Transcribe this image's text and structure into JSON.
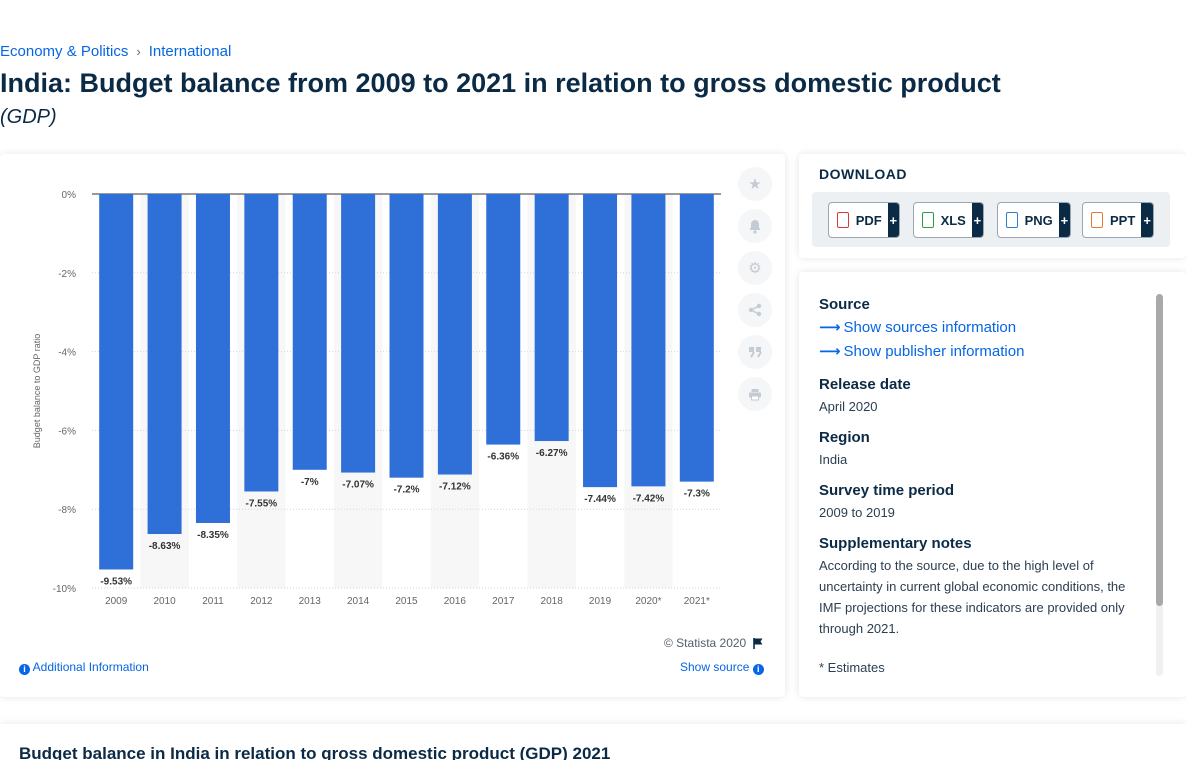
{
  "breadcrumb": {
    "items": [
      "Economy & Politics",
      "International"
    ],
    "separator": "›"
  },
  "title": "India: Budget balance from 2009 to 2021 in relation to gross domestic product",
  "subtitle": "(GDP)",
  "toolbar": {
    "icons": [
      "star-icon",
      "bell-icon",
      "settings-icon",
      "share-icon",
      "quote-icon",
      "print-icon"
    ]
  },
  "chart_footer": {
    "copyright": "© Statista 2020",
    "additional_info": "Additional Information",
    "show_source": "Show source"
  },
  "download": {
    "title": "DOWNLOAD",
    "buttons": [
      {
        "label": "PDF",
        "icon": "pdf-file-icon",
        "color": "#d83a3a"
      },
      {
        "label": "XLS",
        "icon": "xls-file-icon",
        "color": "#2e9e44"
      },
      {
        "label": "PNG",
        "icon": "png-file-icon",
        "color": "#2d7fd3"
      },
      {
        "label": "PPT",
        "icon": "ppt-file-icon",
        "color": "#e8792b"
      }
    ],
    "plus": "+"
  },
  "details": {
    "source_heading": "Source",
    "show_sources": "Show sources information",
    "show_publisher": "Show publisher information",
    "release_heading": "Release date",
    "release_value": "April 2020",
    "region_heading": "Region",
    "region_value": "India",
    "period_heading": "Survey time period",
    "period_value": "2009 to 2019",
    "notes_heading": "Supplementary notes",
    "notes_text": "According to the source, due to the high level of uncertainty in current global economic conditions, the IMF projections for these indicators are provided only through 2021.",
    "notes_more": "* Estimates"
  },
  "bottom": {
    "title": "Budget balance in India in relation to gross domestic product (GDP) 2021"
  },
  "colors": {
    "bar": "#2f6fd8",
    "accent": "#0666e5",
    "text": "#0b2a45"
  },
  "chart_data": {
    "type": "bar",
    "categories": [
      "2009",
      "2010",
      "2011",
      "2012",
      "2013",
      "2014",
      "2015",
      "2016",
      "2017",
      "2018",
      "2019",
      "2020*",
      "2021*"
    ],
    "values": [
      -9.53,
      -8.63,
      -8.35,
      -7.55,
      -7.0,
      -7.07,
      -7.2,
      -7.12,
      -6.36,
      -6.27,
      -7.44,
      -7.42,
      -7.3
    ],
    "value_labels": [
      "-9.53%",
      "-8.63%",
      "-8.35%",
      "-7.55%",
      "-7%",
      "-7.07%",
      "-7.2%",
      "-7.12%",
      "-6.36%",
      "-6.27%",
      "-7.44%",
      "-7.42%",
      "-7.3%"
    ],
    "ylabel": "Budget balance to GDP ratio",
    "ylim": [
      -10,
      0
    ],
    "yticks": [
      0,
      -2,
      -4,
      -6,
      -8,
      -10
    ],
    "ytick_labels": [
      "0%",
      "-2%",
      "-4%",
      "-6%",
      "-8%",
      "-10%"
    ],
    "grid": true
  }
}
